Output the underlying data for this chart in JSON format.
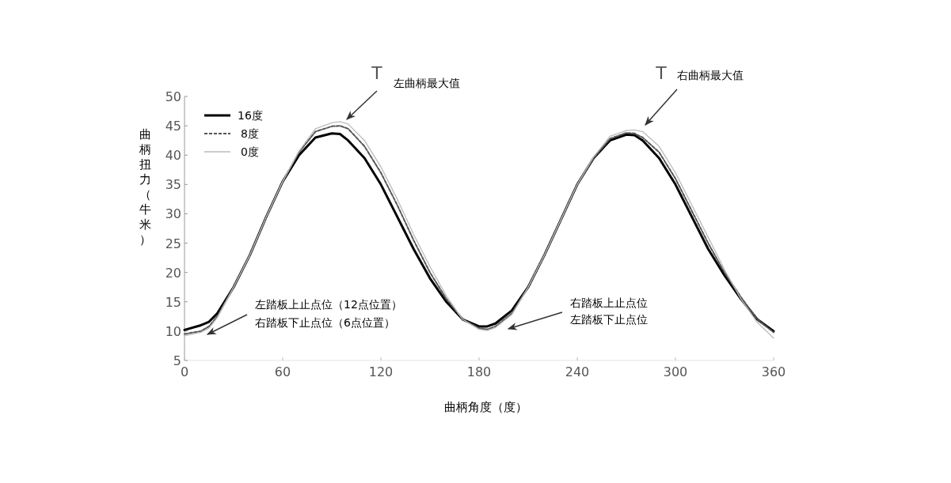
{
  "chart_data": {
    "type": "line",
    "xlabel": "曲柄角度（度）",
    "ylabel": "曲柄扭力（牛米）",
    "xlim": [
      0,
      360
    ],
    "xticks": [
      0,
      60,
      120,
      180,
      240,
      300,
      360
    ],
    "ylim": [
      5,
      50
    ],
    "yticks": [
      5,
      10,
      15,
      20,
      25,
      30,
      35,
      40,
      45,
      50
    ],
    "grid": false,
    "legend": "top left",
    "marker": "none",
    "x": [
      0,
      10,
      15,
      20,
      30,
      40,
      50,
      60,
      70,
      80,
      90,
      95,
      100,
      110,
      120,
      130,
      140,
      150,
      160,
      170,
      180,
      185,
      190,
      200,
      210,
      220,
      230,
      240,
      250,
      260,
      270,
      275,
      280,
      290,
      300,
      310,
      320,
      330,
      340,
      350,
      360
    ],
    "series": [
      {
        "name": "16度",
        "color": "#000000",
        "line_style": "solid",
        "values": [
          10.2,
          11,
          11.6,
          13,
          17.5,
          23,
          29.5,
          35.5,
          40,
          43,
          43.7,
          43.6,
          42.5,
          39.5,
          35,
          29.5,
          24,
          19,
          15,
          12,
          10.8,
          10.8,
          11.3,
          13.5,
          17.5,
          23,
          29,
          35,
          39.5,
          42.5,
          43.5,
          43.4,
          42.5,
          39.5,
          35,
          29.5,
          24,
          19.5,
          15.5,
          12,
          10
        ]
      },
      {
        "name": "8度",
        "color": "#555555",
        "line_style": "dashed",
        "values": [
          9.5,
          10,
          10.8,
          12.5,
          17.5,
          23,
          29.5,
          35.5,
          40.5,
          44,
          44.9,
          45,
          44.5,
          41.5,
          37,
          31.5,
          25.5,
          20,
          15.5,
          12,
          10.5,
          10.3,
          10.8,
          13,
          17.5,
          23,
          29,
          35,
          39.5,
          42.8,
          43.8,
          43.7,
          43,
          40.5,
          36,
          30.5,
          25,
          20,
          15.8,
          12,
          9.8
        ]
      },
      {
        "name": "0度",
        "color": "#bbbbbb",
        "line_style": "solid",
        "values": [
          9.2,
          9.8,
          10.5,
          12.3,
          17.5,
          23,
          29.5,
          35.5,
          40.7,
          44.5,
          45.5,
          45.7,
          45.3,
          42.5,
          38,
          32.5,
          26.5,
          21,
          16,
          12,
          10.3,
          10.1,
          10.6,
          12.8,
          17.5,
          23,
          29,
          35,
          39.7,
          43.2,
          44.2,
          44.3,
          44,
          41.5,
          37,
          31.5,
          26,
          20.5,
          15.5,
          11.5,
          8.8
        ]
      }
    ],
    "annotations": [
      "T",
      "左曲柄最大值",
      "T",
      "右曲柄最大值",
      "左踏板上止点位（12点位置）",
      "右踏板下止点位（6点位置）",
      "右踏板上止点位",
      "左踏板下止点位"
    ]
  }
}
